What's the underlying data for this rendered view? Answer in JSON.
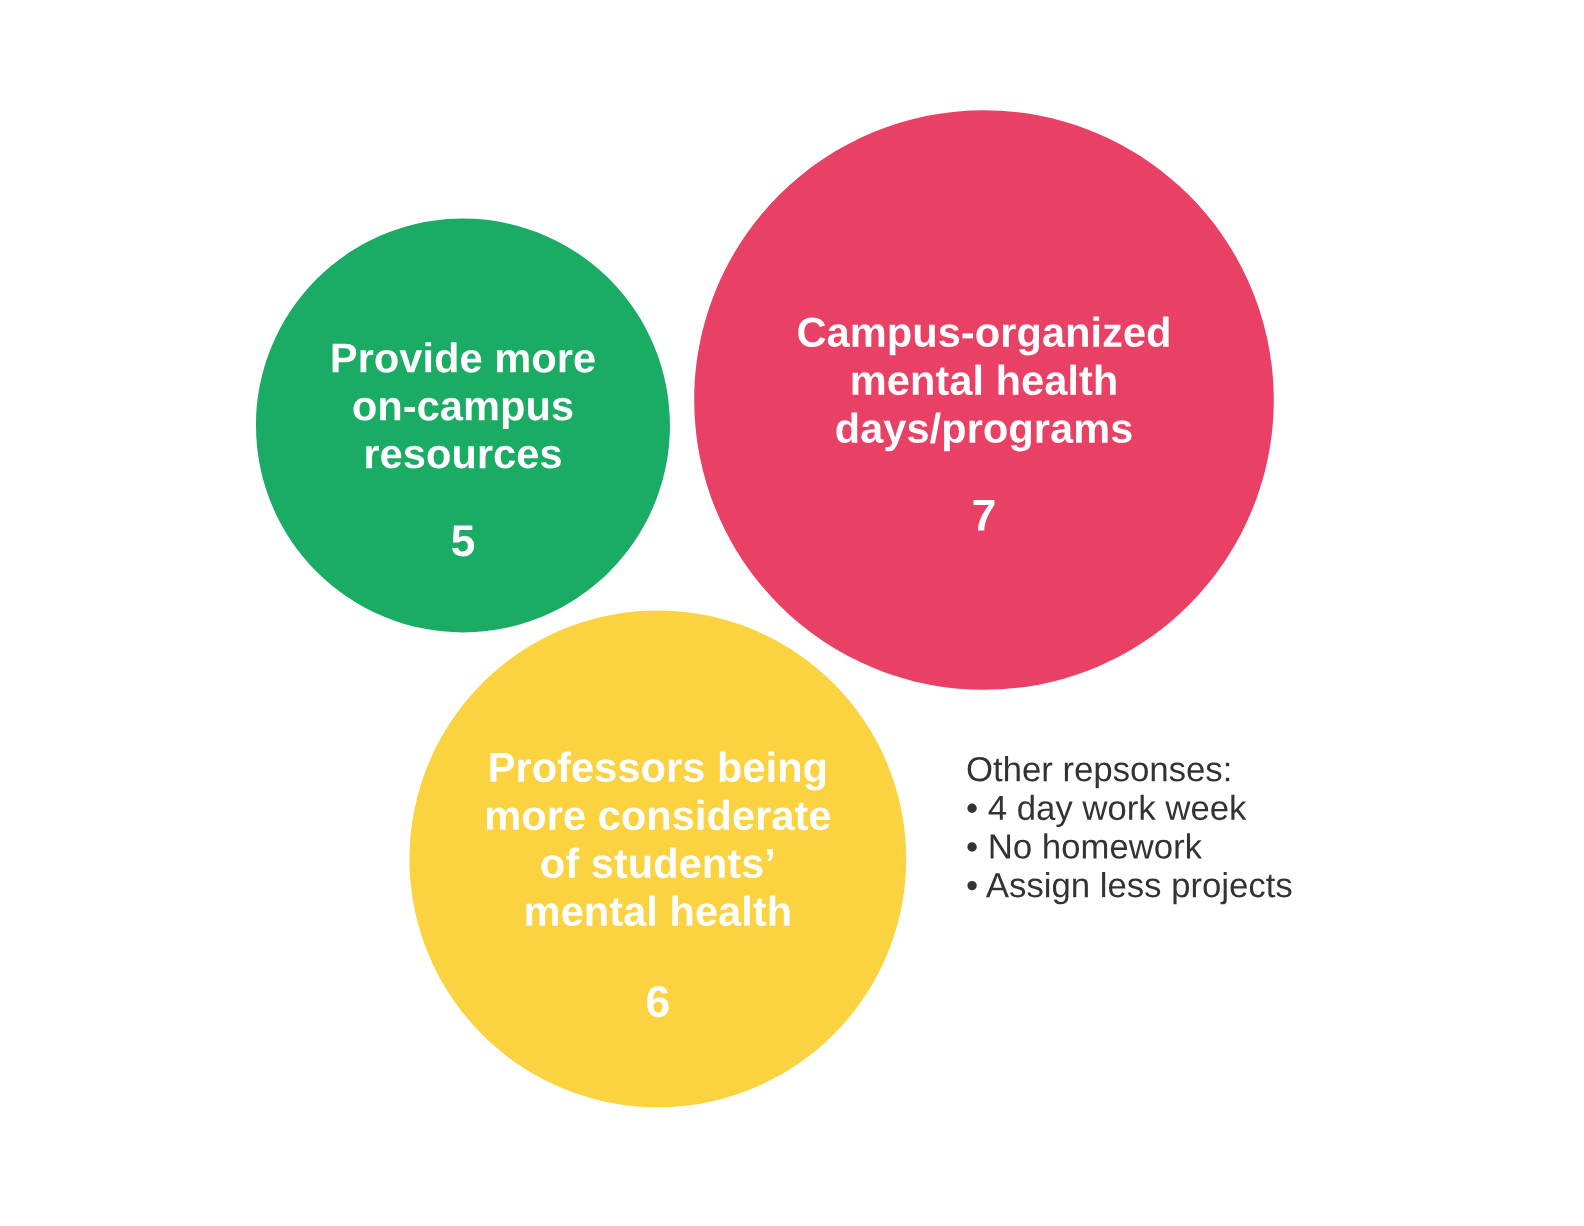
{
  "chart_data": {
    "type": "other",
    "categories": [
      "Provide more\non-campus\nresources",
      "Campus-organized\nmental health\ndays/programs",
      "Professors being\nmore considerate\nof students’\nmental health"
    ],
    "values": [
      5,
      7,
      6
    ],
    "colors": [
      "#1aab64",
      "#e94065",
      "#fbd240"
    ],
    "data_labels": true,
    "annotations": [
      "Other repsonses:\n• 4 day work week\n• No homework\n• Assign less projects"
    ]
  }
}
